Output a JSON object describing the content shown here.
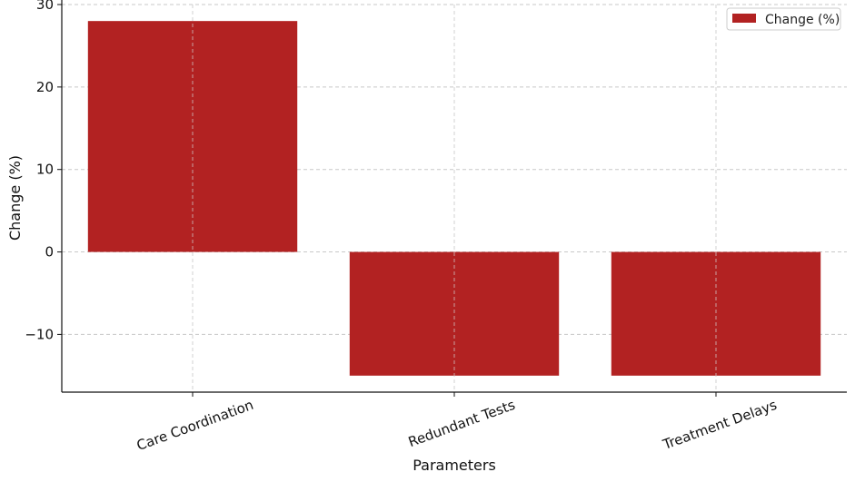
{
  "chart_data": {
    "type": "bar",
    "categories": [
      "Care Coordination",
      "Redundant Tests",
      "Treatment Delays"
    ],
    "series": [
      {
        "name": "Change (%)",
        "values": [
          28,
          -15,
          -15
        ],
        "color": "#b22222"
      }
    ],
    "xlabel": "Parameters",
    "ylabel": "Change (%)",
    "ylim": [
      -17,
      30
    ],
    "yticks": [
      -10,
      0,
      10,
      20,
      30
    ],
    "ytick_labels": [
      "−10",
      "0",
      "10",
      "20",
      "30"
    ],
    "grid": true,
    "legend_position": "top-right"
  }
}
